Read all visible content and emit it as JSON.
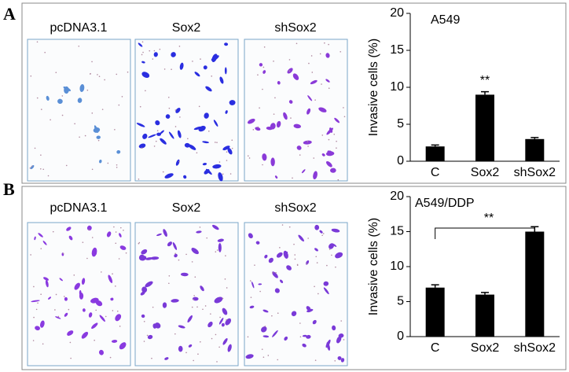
{
  "panels": [
    {
      "label": "A",
      "image_labels": [
        "pcDNA3.1",
        "Sox2",
        "shSox2"
      ]
    },
    {
      "label": "B",
      "image_labels": [
        "pcDNA3.1",
        "Sox2",
        "shSox2"
      ]
    }
  ],
  "chart_data": [
    {
      "type": "bar",
      "title": "A549",
      "y_label": "Invasive cells (%)",
      "categories": [
        "C",
        "Sox2",
        "shSox2"
      ],
      "values": [
        2,
        9,
        3
      ],
      "errors": [
        0.2,
        0.4,
        0.2
      ],
      "color": "#000000",
      "ylim": [
        0,
        20
      ],
      "yticks": [
        0,
        5,
        10,
        15,
        20
      ],
      "annotation": "**"
    },
    {
      "type": "bar",
      "title": "A549/DDP",
      "y_label": "Invasive cells (%)",
      "categories": [
        "C",
        "Sox2",
        "shSox2"
      ],
      "values": [
        7,
        6,
        15
      ],
      "errors": [
        0.4,
        0.3,
        0.7
      ],
      "color": "#000000",
      "ylim": [
        0,
        20
      ],
      "yticks": [
        0,
        5,
        10,
        15,
        20
      ],
      "annotation": "**"
    }
  ]
}
